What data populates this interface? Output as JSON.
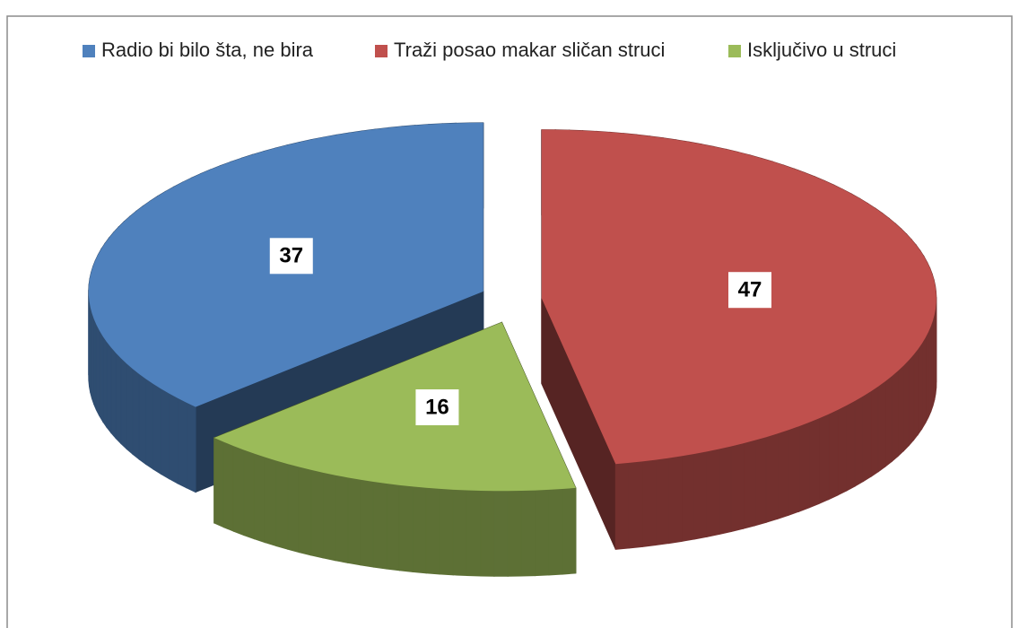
{
  "chart_data": {
    "type": "pie",
    "categories": [
      "Radio bi bilo šta, ne bira",
      "Traži posao makar sličan  struci",
      "Isključivo u  struci"
    ],
    "values": [
      37,
      47,
      16
    ],
    "colors": [
      "#4f81bd",
      "#c0504d",
      "#9bbb59"
    ],
    "legend": "top"
  }
}
